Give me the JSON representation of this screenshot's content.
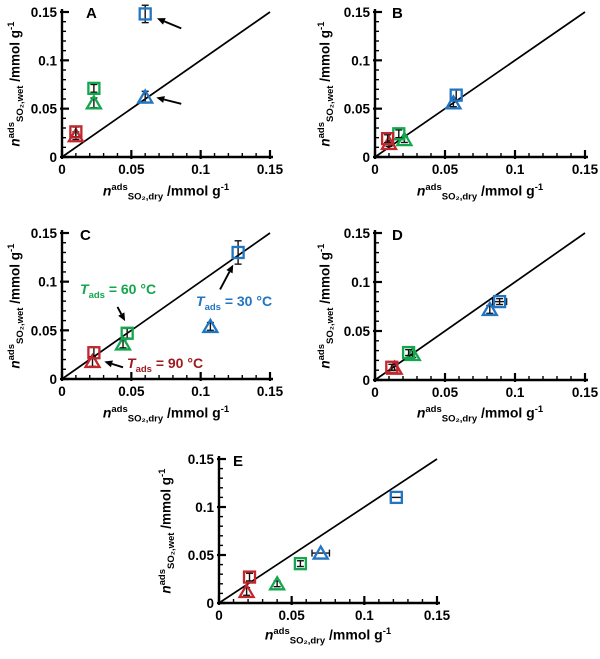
{
  "figure": {
    "labels": {
      "n": "n",
      "sup": "ads",
      "sub_dry": "SO₂,dry",
      "sub_wet": "SO₂,wet",
      "unit_pre": " /mmol g",
      "unit_sup": "-1",
      "t_prefix": "T",
      "t_sub": "ads"
    },
    "colors": {
      "blue30": "#2175c2",
      "green60": "#12a64d",
      "red90": "#c1272d",
      "annotation_red": "#9c1b20",
      "axis": "#000000"
    }
  },
  "chart_data": [
    {
      "type": "scatter",
      "panel": "A",
      "xlabel": "n^ads_SO2,dry /mmol g^-1",
      "ylabel": "n^ads_SO2,wet /mmol g^-1",
      "xlim": [
        0,
        0.15
      ],
      "ylim": [
        0,
        0.15
      ],
      "tick_values": [
        0,
        0.05,
        0.1,
        0.15
      ],
      "tick_labels": [
        "0",
        "0.05",
        "0.1",
        "0.15"
      ],
      "minor_step": 0.01,
      "parity_line": {
        "from": [
          0,
          0
        ],
        "to": [
          0.15,
          0.15
        ]
      },
      "series": [
        {
          "name": "Tads = 30 °C",
          "color_key": "blue30",
          "square": {
            "x": 0.06,
            "y": 0.148,
            "yerr": 0.009
          },
          "triangle": {
            "x": 0.06,
            "y": 0.062,
            "yerr": 0.006
          }
        },
        {
          "name": "Tads = 60 °C",
          "color_key": "green60",
          "square": {
            "x": 0.023,
            "y": 0.071,
            "yerr": 0.004
          },
          "triangle": {
            "x": 0.023,
            "y": 0.056,
            "yerr": 0.005
          }
        },
        {
          "name": "Tads = 90 °C",
          "color_key": "red90",
          "square": {
            "x": 0.01,
            "y": 0.026,
            "yerr": 0.005
          },
          "triangle": {
            "x": 0.01,
            "y": 0.022,
            "yerr": 0.004
          }
        }
      ],
      "arrows": [
        {
          "from": [
            0.086,
            0.133
          ],
          "to": [
            0.0685,
            0.1435
          ]
        },
        {
          "from": [
            0.086,
            0.055
          ],
          "to": [
            0.068,
            0.0615
          ]
        }
      ],
      "annotations": []
    },
    {
      "type": "scatter",
      "panel": "B",
      "xlabel": "n^ads_SO2,dry /mmol g^-1",
      "ylabel": "n^ads_SO2,wet /mmol g^-1",
      "xlim": [
        0,
        0.15
      ],
      "ylim": [
        0,
        0.15
      ],
      "tick_values": [
        0,
        0.05,
        0.1,
        0.15
      ],
      "tick_labels": [
        "0",
        "0.05",
        "0.1",
        "0.15"
      ],
      "minor_step": 0.01,
      "parity_line": {
        "from": [
          0,
          0
        ],
        "to": [
          0.15,
          0.15
        ]
      },
      "series": [
        {
          "name": "Tads = 30 °C",
          "color_key": "blue30",
          "square": {
            "x": 0.058,
            "y": 0.064,
            "yerr": 0.006
          },
          "triangle": {
            "x": 0.056,
            "y": 0.056,
            "yerr": 0.004
          }
        },
        {
          "name": "Tads = 60 °C",
          "color_key": "green60",
          "square": {
            "x": 0.017,
            "y": 0.024,
            "yerr": 0.004
          },
          "triangle": {
            "x": 0.021,
            "y": 0.018,
            "yerr": 0.003
          }
        },
        {
          "name": "Tads = 90 °C",
          "color_key": "red90",
          "square": {
            "x": 0.009,
            "y": 0.019,
            "yerr": 0.004
          },
          "triangle": {
            "x": 0.01,
            "y": 0.014,
            "yerr": 0.003
          }
        }
      ],
      "arrows": [],
      "annotations": []
    },
    {
      "type": "scatter",
      "panel": "C",
      "xlabel": "n^ads_SO2,dry /mmol g^-1",
      "ylabel": "n^ads_SO2,wet /mmol g^-1",
      "xlim": [
        0,
        0.15
      ],
      "ylim": [
        0,
        0.15
      ],
      "tick_values": [
        0,
        0.05,
        0.1,
        0.15
      ],
      "tick_labels": [
        "0",
        "0.05",
        "0.1",
        "0.15"
      ],
      "minor_step": 0.01,
      "parity_line": {
        "from": [
          0,
          0
        ],
        "to": [
          0.15,
          0.15
        ]
      },
      "series": [
        {
          "name": "Tads = 30 °C",
          "color_key": "blue30",
          "square": {
            "x": 0.127,
            "y": 0.13,
            "yerr": 0.012
          },
          "triangle": {
            "x": 0.107,
            "y": 0.054,
            "yerr": 0.004
          }
        },
        {
          "name": "Tads = 60 °C",
          "color_key": "green60",
          "square": {
            "x": 0.047,
            "y": 0.047,
            "yerr": 0.005
          },
          "triangle": {
            "x": 0.044,
            "y": 0.036,
            "yerr": 0.004
          }
        },
        {
          "name": "Tads = 90 °C",
          "color_key": "red90",
          "square": {
            "x": 0.023,
            "y": 0.027,
            "yerr": 0.006
          },
          "triangle": {
            "x": 0.022,
            "y": 0.018,
            "yerr": 0.005
          }
        }
      ],
      "arrows": [
        {
          "from": [
            0.04,
            0.074
          ],
          "to": [
            0.0455,
            0.0595
          ]
        },
        {
          "from": [
            0.114,
            0.092
          ],
          "to": [
            0.1235,
            0.1175
          ]
        },
        {
          "from": [
            0.044,
            0.012
          ],
          "to": [
            0.0305,
            0.018
          ]
        }
      ],
      "annotations": [
        {
          "rest": " = 60 °C",
          "color_key": "green60"
        },
        {
          "rest": " = 30 °C",
          "color_key": "blue30"
        },
        {
          "rest": " = 90 °C",
          "color_key": "annotation_red"
        }
      ]
    },
    {
      "type": "scatter",
      "panel": "D",
      "xlabel": "n^ads_SO2,dry /mmol g^-1",
      "ylabel": "n^ads_SO2,wet /mmol g^-1",
      "xlim": [
        0,
        0.15
      ],
      "ylim": [
        0,
        0.15
      ],
      "tick_values": [
        0,
        0.05,
        0.1,
        0.15
      ],
      "tick_labels": [
        "0",
        "0.05",
        "0.1",
        "0.15"
      ],
      "minor_step": 0.01,
      "parity_line": {
        "from": [
          0,
          0
        ],
        "to": [
          0.15,
          0.15
        ]
      },
      "series": [
        {
          "name": "Tads = 30 °C",
          "color_key": "blue30",
          "square": {
            "x": 0.089,
            "y": 0.08,
            "xerr": 0.005,
            "yerr": 0.003
          },
          "triangle": {
            "x": 0.082,
            "y": 0.072,
            "yerr": 0.004
          }
        },
        {
          "name": "Tads = 60 °C",
          "color_key": "green60",
          "square": {
            "x": 0.024,
            "y": 0.028,
            "yerr": 0.003
          },
          "triangle": {
            "x": 0.027,
            "y": 0.026,
            "yerr": 0.003
          }
        },
        {
          "name": "Tads = 90 °C",
          "color_key": "red90",
          "square": {
            "x": 0.012,
            "y": 0.013,
            "yerr": 0.003
          },
          "triangle": {
            "x": 0.014,
            "y": 0.012,
            "yerr": 0.002
          }
        }
      ],
      "arrows": [],
      "annotations": []
    },
    {
      "type": "scatter",
      "panel": "E",
      "xlabel": "n^ads_SO2,dry /mmol g^-1",
      "ylabel": "n^ads_SO2,wet /mmol g^-1",
      "xlim": [
        0,
        0.15
      ],
      "ylim": [
        0,
        0.15
      ],
      "tick_values": [
        0,
        0.05,
        0.1,
        0.15
      ],
      "tick_labels": [
        "0",
        "0.05",
        "0.1",
        "0.15"
      ],
      "minor_step": 0.01,
      "parity_line": {
        "from": [
          0,
          0
        ],
        "to": [
          0.15,
          0.15
        ]
      },
      "series": [
        {
          "name": "Tads = 30 °C",
          "color_key": "blue30",
          "square": {
            "x": 0.122,
            "y": 0.11,
            "xerr": 0.004
          },
          "triangle": {
            "x": 0.07,
            "y": 0.052,
            "xerr": 0.006
          }
        },
        {
          "name": "Tads = 60 °C",
          "color_key": "green60",
          "square": {
            "x": 0.056,
            "y": 0.041,
            "yerr": 0.003
          },
          "triangle": {
            "x": 0.04,
            "y": 0.02,
            "yerr": 0.003
          }
        },
        {
          "name": "Tads = 90 °C",
          "color_key": "red90",
          "square": {
            "x": 0.021,
            "y": 0.027,
            "yerr": 0.004
          },
          "triangle": {
            "x": 0.019,
            "y": 0.012,
            "yerr": 0.004
          }
        }
      ],
      "arrows": [],
      "annotations": []
    }
  ]
}
